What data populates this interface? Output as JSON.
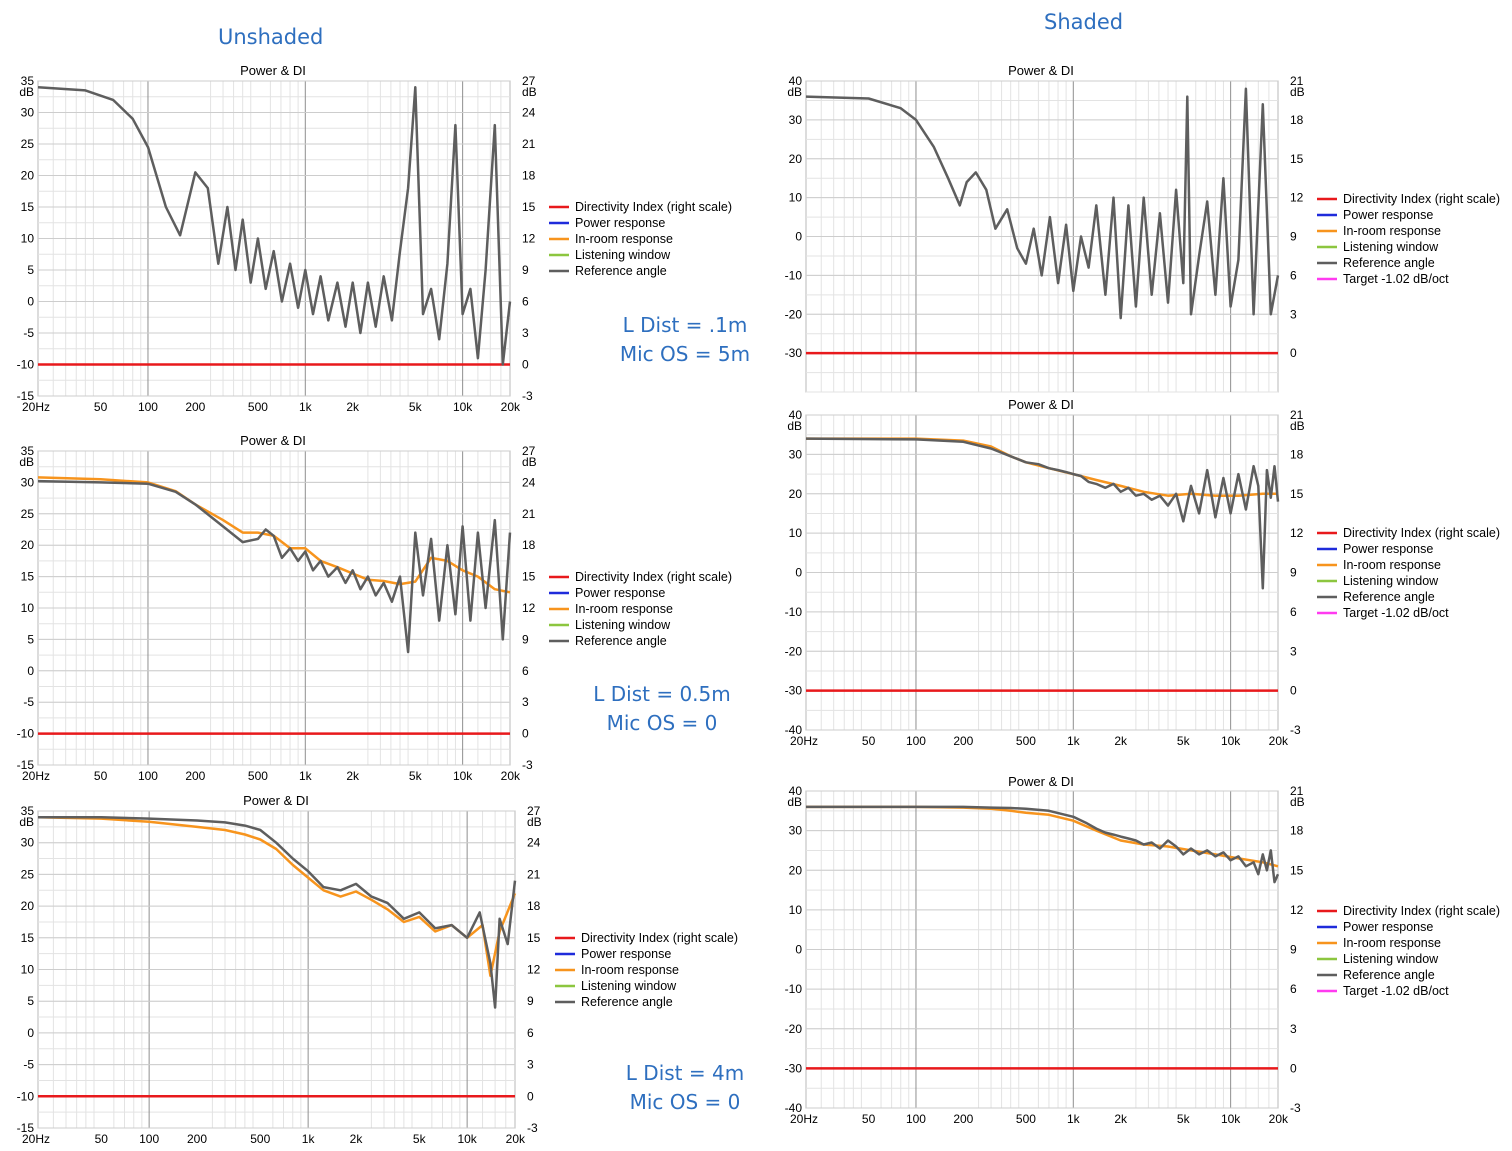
{
  "headings": {
    "unshaded": "Unshaded",
    "shaded": "Shaded"
  },
  "notes": [
    {
      "line1": "L Dist = .1m",
      "line2": "Mic OS = 5m"
    },
    {
      "line1": "L Dist = 0.5m",
      "line2": "Mic OS = 0"
    },
    {
      "line1": "L Dist = 4m",
      "line2": "Mic OS = 0"
    }
  ],
  "colors": {
    "di": "#e8191c",
    "power": "#1f2bdb",
    "inroom": "#f7941d",
    "listening": "#8cc63f",
    "reference": "#5e5e5e",
    "target": "#ff3bf0"
  },
  "chart_data": [
    {
      "id": "unshaded-1",
      "type": "line",
      "title": "Power & DI",
      "xscale": "log",
      "xlim": [
        20,
        20000
      ],
      "xticks": [
        "20Hz",
        "50",
        "100",
        "200",
        "500",
        "1k",
        "2k",
        "5k",
        "10k",
        "20k"
      ],
      "ylim": [
        -15,
        35
      ],
      "yticks": [
        35,
        30,
        25,
        20,
        15,
        10,
        5,
        0,
        -5,
        -10,
        -15
      ],
      "yunit": "dB",
      "y2lim": [
        -3,
        27
      ],
      "y2ticks": [
        27,
        24,
        21,
        18,
        15,
        12,
        9,
        6,
        3,
        0,
        -3
      ],
      "y2unit": "dB",
      "legend": [
        "Directivity Index (right scale)",
        "Power response",
        "In-room response",
        "Listening window",
        "Reference angle"
      ],
      "series": [
        {
          "name": "Directivity Index (right scale)",
          "axis": "right",
          "x": [
            20,
            20000
          ],
          "y": [
            0,
            0
          ]
        },
        {
          "name": "Reference angle",
          "x": [
            20,
            40,
            60,
            80,
            100,
            130,
            160,
            200,
            240,
            280,
            320,
            360,
            400,
            450,
            500,
            560,
            630,
            710,
            800,
            900,
            1000,
            1120,
            1250,
            1400,
            1600,
            1800,
            2000,
            2240,
            2500,
            2800,
            3150,
            3550,
            4000,
            4500,
            5000,
            5600,
            6300,
            7100,
            8000,
            9000,
            10000,
            11200,
            12500,
            14000,
            16000,
            18000,
            20000
          ],
          "y": [
            34,
            33.5,
            32,
            29,
            24.5,
            15,
            10.5,
            20.5,
            18,
            6,
            15,
            5,
            13,
            3,
            10,
            2,
            8,
            0,
            6,
            -1,
            5,
            -2,
            4,
            -3,
            3,
            -4,
            3,
            -5,
            3,
            -4,
            4,
            -3,
            8,
            18,
            34,
            -2,
            2,
            -6,
            6,
            28,
            -2,
            2,
            -9,
            5,
            28,
            -10,
            0
          ]
        }
      ]
    },
    {
      "id": "unshaded-2",
      "type": "line",
      "title": "Power & DI",
      "xscale": "log",
      "xlim": [
        20,
        20000
      ],
      "xticks": [
        "20Hz",
        "50",
        "100",
        "200",
        "500",
        "1k",
        "2k",
        "5k",
        "10k",
        "20k"
      ],
      "ylim": [
        -15,
        35
      ],
      "yticks": [
        35,
        30,
        25,
        20,
        15,
        10,
        5,
        0,
        -5,
        -10,
        -15
      ],
      "yunit": "dB",
      "y2lim": [
        -3,
        27
      ],
      "y2ticks": [
        27,
        24,
        21,
        18,
        15,
        12,
        9,
        6,
        3,
        0,
        -3
      ],
      "y2unit": "dB",
      "legend": [
        "Directivity Index (right scale)",
        "Power response",
        "In-room response",
        "Listening window",
        "Reference angle"
      ],
      "series": [
        {
          "name": "Directivity Index (right scale)",
          "axis": "right",
          "x": [
            20,
            20000
          ],
          "y": [
            0,
            0
          ]
        },
        {
          "name": "In-room response",
          "x": [
            20,
            50,
            100,
            150,
            200,
            300,
            400,
            500,
            630,
            800,
            1000,
            1250,
            1600,
            2000,
            2500,
            3150,
            4000,
            5000,
            6300,
            8000,
            10000,
            12500,
            16000,
            20000
          ],
          "y": [
            30.8,
            30.5,
            30,
            28.6,
            26.5,
            24,
            22,
            22,
            21.5,
            19.5,
            19.5,
            17.5,
            16.5,
            15.5,
            14.5,
            14.3,
            13.8,
            14.2,
            18,
            17.5,
            16,
            15,
            13,
            12.5
          ]
        },
        {
          "name": "Reference angle",
          "x": [
            20,
            50,
            100,
            150,
            200,
            300,
            400,
            500,
            560,
            630,
            710,
            800,
            900,
            1000,
            1120,
            1250,
            1400,
            1600,
            1800,
            2000,
            2240,
            2500,
            2800,
            3150,
            3550,
            4000,
            4500,
            5000,
            5600,
            6300,
            7100,
            8000,
            9000,
            10000,
            11200,
            12500,
            14000,
            16000,
            18000,
            20000
          ],
          "y": [
            30.2,
            30,
            29.8,
            28.5,
            26.5,
            23,
            20.5,
            21,
            22.5,
            21.5,
            18,
            19.5,
            17.5,
            19,
            16,
            17.5,
            15,
            16.5,
            14,
            16,
            13,
            15,
            12,
            14,
            11,
            15,
            3,
            22,
            12,
            21,
            8,
            20,
            9,
            23,
            8,
            22,
            10,
            24,
            5,
            22
          ]
        }
      ]
    },
    {
      "id": "unshaded-3",
      "type": "line",
      "title": "Power & DI",
      "xscale": "log",
      "xlim": [
        20,
        20000
      ],
      "xticks": [
        "20Hz",
        "50",
        "100",
        "200",
        "500",
        "1k",
        "2k",
        "5k",
        "10k",
        "20k"
      ],
      "ylim": [
        -15,
        35
      ],
      "yticks": [
        35,
        30,
        25,
        20,
        15,
        10,
        5,
        0,
        -5,
        -10,
        -15
      ],
      "yunit": "dB",
      "y2lim": [
        -3,
        27
      ],
      "y2ticks": [
        27,
        24,
        21,
        18,
        15,
        12,
        9,
        6,
        3,
        0,
        -3
      ],
      "y2unit": "dB",
      "legend": [
        "Directivity Index (right scale)",
        "Power response",
        "In-room response",
        "Listening window",
        "Reference angle"
      ],
      "series": [
        {
          "name": "Directivity Index (right scale)",
          "axis": "right",
          "x": [
            20,
            20000
          ],
          "y": [
            0,
            0
          ]
        },
        {
          "name": "In-room response",
          "x": [
            20,
            50,
            100,
            200,
            300,
            400,
            500,
            630,
            800,
            1000,
            1250,
            1600,
            2000,
            2500,
            3150,
            4000,
            5000,
            6300,
            8000,
            10000,
            12500,
            14000,
            16000,
            20000
          ],
          "y": [
            34,
            33.8,
            33.3,
            32.5,
            32,
            31.3,
            30.5,
            29,
            26.5,
            24.5,
            22.5,
            21.5,
            22.3,
            21,
            19.5,
            17.5,
            18.3,
            16,
            17,
            15,
            17,
            9,
            16,
            22
          ]
        },
        {
          "name": "Reference angle",
          "x": [
            20,
            50,
            100,
            200,
            300,
            400,
            500,
            630,
            800,
            1000,
            1250,
            1600,
            2000,
            2500,
            3150,
            4000,
            5000,
            6300,
            8000,
            10000,
            12000,
            14000,
            15000,
            16000,
            18000,
            20000
          ],
          "y": [
            34,
            34,
            33.8,
            33.5,
            33.2,
            32.7,
            32,
            30,
            27.5,
            25.5,
            23,
            22.5,
            23.5,
            21.5,
            20.5,
            18,
            19,
            16.5,
            17,
            15,
            19,
            11,
            4,
            18,
            14,
            24
          ]
        }
      ]
    },
    {
      "id": "shaded-1",
      "type": "line",
      "title": "Power & DI",
      "xscale": "log",
      "xlim": [
        20,
        20000
      ],
      "xticks": [],
      "ylim": [
        -40,
        40
      ],
      "yticks": [
        40,
        30,
        20,
        10,
        0,
        -10,
        -20,
        -30
      ],
      "yunit": "dB",
      "y2lim": [
        -3,
        21
      ],
      "y2ticks": [
        21,
        18,
        15,
        12,
        9,
        6,
        3,
        0
      ],
      "y2unit": "dB",
      "legend": [
        "Directivity Index (right scale)",
        "Power response",
        "In-room response",
        "Listening window",
        "Reference angle",
        "Target -1.02 dB/oct"
      ],
      "series": [
        {
          "name": "Directivity Index (right scale)",
          "axis": "right",
          "x": [
            20,
            20000
          ],
          "y": [
            0,
            0
          ]
        },
        {
          "name": "Reference angle",
          "x": [
            20,
            50,
            80,
            100,
            130,
            160,
            190,
            210,
            240,
            280,
            320,
            380,
            440,
            500,
            560,
            630,
            710,
            800,
            900,
            1000,
            1120,
            1250,
            1400,
            1600,
            1800,
            2000,
            2240,
            2500,
            2800,
            3150,
            3550,
            4000,
            4500,
            5000,
            5300,
            5600,
            6300,
            7100,
            8000,
            9000,
            10000,
            11200,
            12500,
            14000,
            16000,
            18000,
            20000
          ],
          "y": [
            36,
            35.5,
            33,
            30,
            23,
            15,
            8,
            14,
            16.5,
            12,
            2,
            7,
            -3,
            -7,
            2,
            -10,
            5,
            -12,
            3,
            -14,
            0,
            -8,
            8,
            -15,
            10,
            -21,
            8,
            -18,
            10,
            -15,
            6,
            -17,
            12,
            -12,
            36,
            -20,
            -5,
            9,
            -15,
            15,
            -18,
            -6,
            38,
            -20,
            34,
            -20,
            -10
          ]
        }
      ]
    },
    {
      "id": "shaded-2",
      "type": "line",
      "title": "Power & DI",
      "xscale": "log",
      "xlim": [
        20,
        20000
      ],
      "xticks": [
        "20Hz",
        "50",
        "100",
        "200",
        "500",
        "1k",
        "2k",
        "5k",
        "10k",
        "20k"
      ],
      "ylim": [
        -40,
        40
      ],
      "yticks": [
        40,
        30,
        20,
        10,
        0,
        -10,
        -20,
        -30,
        -40
      ],
      "yunit": "dB",
      "y2lim": [
        -3,
        21
      ],
      "y2ticks": [
        21,
        18,
        15,
        12,
        9,
        6,
        3,
        0,
        -3
      ],
      "y2unit": "dB",
      "legend": [
        "Directivity Index (right scale)",
        "Power response",
        "In-room response",
        "Listening window",
        "Reference angle",
        "Target -1.02 dB/oct"
      ],
      "series": [
        {
          "name": "Directivity Index (right scale)",
          "axis": "right",
          "x": [
            20,
            20000
          ],
          "y": [
            0,
            0
          ]
        },
        {
          "name": "In-room response",
          "x": [
            20,
            100,
            200,
            300,
            400,
            500,
            700,
            1000,
            1400,
            2000,
            2800,
            4000,
            5600,
            8000,
            11200,
            16000,
            20000
          ],
          "y": [
            34,
            34,
            33.5,
            32,
            29.5,
            28,
            26.5,
            25,
            23.5,
            22,
            20.5,
            19.5,
            20,
            19.5,
            19.5,
            20,
            20
          ]
        },
        {
          "name": "Reference angle",
          "x": [
            20,
            100,
            200,
            300,
            400,
            500,
            600,
            700,
            800,
            900,
            1000,
            1120,
            1250,
            1400,
            1600,
            1800,
            2000,
            2240,
            2500,
            2800,
            3150,
            3550,
            4000,
            4500,
            5000,
            5600,
            6300,
            7100,
            8000,
            9000,
            10000,
            11200,
            12500,
            14000,
            15000,
            16000,
            17000,
            18000,
            19000,
            20000
          ],
          "y": [
            34,
            33.8,
            33.2,
            31.5,
            29.5,
            28,
            27.5,
            26.5,
            26,
            25.5,
            25,
            24.5,
            23,
            22.5,
            21.5,
            22.5,
            20.5,
            21.5,
            19.5,
            20,
            18.5,
            19.5,
            17,
            20,
            13,
            22,
            15,
            26,
            14,
            24,
            15,
            25,
            16,
            27,
            22,
            -4,
            26,
            19,
            27,
            18
          ]
        }
      ]
    },
    {
      "id": "shaded-3",
      "type": "line",
      "title": "Power & DI",
      "xscale": "log",
      "xlim": [
        20,
        20000
      ],
      "xticks": [
        "20Hz",
        "50",
        "100",
        "200",
        "500",
        "1k",
        "2k",
        "5k",
        "10k",
        "20k"
      ],
      "ylim": [
        -40,
        40
      ],
      "yticks": [
        40,
        30,
        20,
        10,
        0,
        -10,
        -20,
        -30,
        -40
      ],
      "yunit": "dB",
      "y2lim": [
        -3,
        21
      ],
      "y2ticks": [
        21,
        18,
        15,
        12,
        9,
        6,
        3,
        0,
        -3
      ],
      "y2unit": "dB",
      "legend": [
        "Directivity Index (right scale)",
        "Power response",
        "In-room response",
        "Listening window",
        "Reference angle",
        "Target -1.02 dB/oct"
      ],
      "series": [
        {
          "name": "Directivity Index (right scale)",
          "axis": "right",
          "x": [
            20,
            20000
          ],
          "y": [
            0,
            0
          ]
        },
        {
          "name": "In-room response",
          "x": [
            20,
            100,
            200,
            300,
            400,
            500,
            700,
            1000,
            1400,
            2000,
            2800,
            4000,
            5600,
            8000,
            11200,
            16000,
            20000
          ],
          "y": [
            36,
            36,
            35.8,
            35.5,
            35,
            34.5,
            34,
            32.5,
            30,
            27.5,
            26.5,
            26,
            25,
            24,
            23,
            22,
            21
          ]
        },
        {
          "name": "Reference angle",
          "x": [
            20,
            100,
            200,
            300,
            400,
            500,
            700,
            1000,
            1200,
            1400,
            1600,
            1800,
            2000,
            2240,
            2500,
            2800,
            3150,
            3550,
            4000,
            4500,
            5000,
            5600,
            6300,
            7100,
            8000,
            9000,
            10000,
            11200,
            12500,
            14000,
            15000,
            16000,
            17000,
            18000,
            19000,
            20000
          ],
          "y": [
            36,
            36,
            36,
            35.8,
            35.7,
            35.5,
            35,
            33.5,
            32,
            30.5,
            29.5,
            29,
            28.5,
            28,
            27.5,
            26.5,
            27,
            25.5,
            27.5,
            26,
            24,
            25.5,
            24,
            25,
            23.5,
            24.5,
            22.5,
            23.5,
            21,
            22,
            19,
            24,
            20,
            25,
            17,
            19
          ]
        }
      ]
    }
  ]
}
